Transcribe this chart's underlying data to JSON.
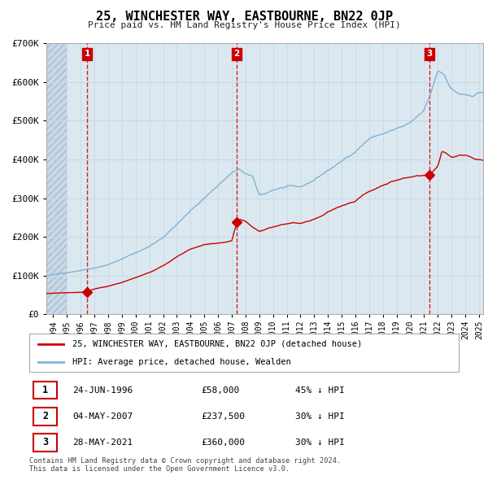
{
  "title": "25, WINCHESTER WAY, EASTBOURNE, BN22 0JP",
  "subtitle": "Price paid vs. HM Land Registry's House Price Index (HPI)",
  "legend_label_red": "25, WINCHESTER WAY, EASTBOURNE, BN22 0JP (detached house)",
  "legend_label_blue": "HPI: Average price, detached house, Wealden",
  "footer": "Contains HM Land Registry data © Crown copyright and database right 2024.\nThis data is licensed under the Open Government Licence v3.0.",
  "ylim": [
    0,
    700000
  ],
  "yticks": [
    0,
    100000,
    200000,
    300000,
    400000,
    500000,
    600000,
    700000
  ],
  "ytick_labels": [
    "£0",
    "£100K",
    "£200K",
    "£300K",
    "£400K",
    "£500K",
    "£600K",
    "£700K"
  ],
  "xlim_start": 1993.5,
  "xlim_end": 2025.3,
  "sale_dates": [
    1996.48,
    2007.34,
    2021.41
  ],
  "sale_prices": [
    58000,
    237500,
    360000
  ],
  "sale_labels": [
    "1",
    "2",
    "3"
  ],
  "sale_info": [
    {
      "label": "1",
      "date": "24-JUN-1996",
      "price": "£58,000",
      "hpi": "45% ↓ HPI"
    },
    {
      "label": "2",
      "date": "04-MAY-2007",
      "price": "£237,500",
      "hpi": "30% ↓ HPI"
    },
    {
      "label": "3",
      "date": "28-MAY-2021",
      "price": "£360,000",
      "hpi": "30% ↓ HPI"
    }
  ],
  "red_color": "#cc0000",
  "blue_color": "#7fb3d3",
  "vline_color": "#cc0000",
  "grid_color": "#c8d8e8",
  "bg_color": "#dce8f0",
  "hatch_zone_end": 1995.0,
  "marker_box_color": "#cc0000"
}
